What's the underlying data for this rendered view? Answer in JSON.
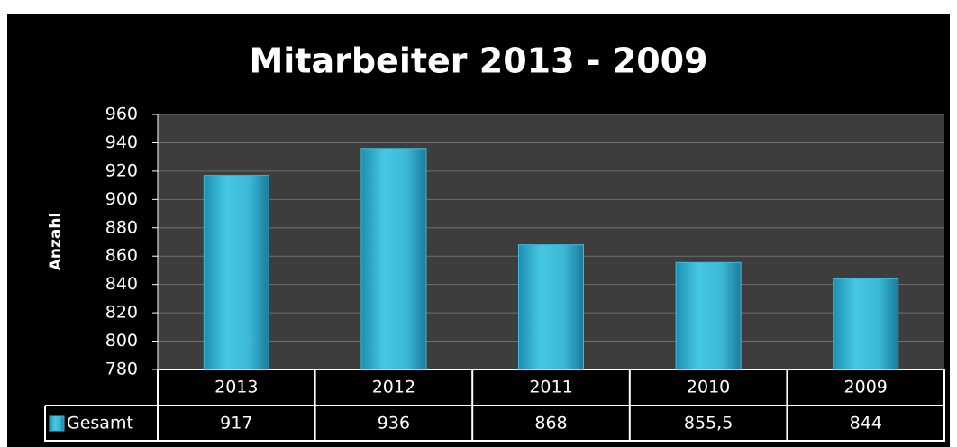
{
  "chart_data": {
    "type": "bar",
    "title": "Mitarbeiter 2013 - 2009",
    "y_label": "Anzahl",
    "categories": [
      "2013",
      "2012",
      "2011",
      "2010",
      "2009"
    ],
    "series": [
      {
        "name": "Gesamt",
        "color": "#3cbcd9",
        "values": [
          917,
          936,
          868,
          855.5,
          844
        ],
        "value_labels": [
          "917",
          "936",
          "868",
          "855,5",
          "844"
        ]
      }
    ],
    "ylim": [
      780,
      960
    ],
    "yticks": [
      780,
      800,
      820,
      840,
      860,
      880,
      900,
      920,
      940,
      960
    ],
    "grid": true
  }
}
